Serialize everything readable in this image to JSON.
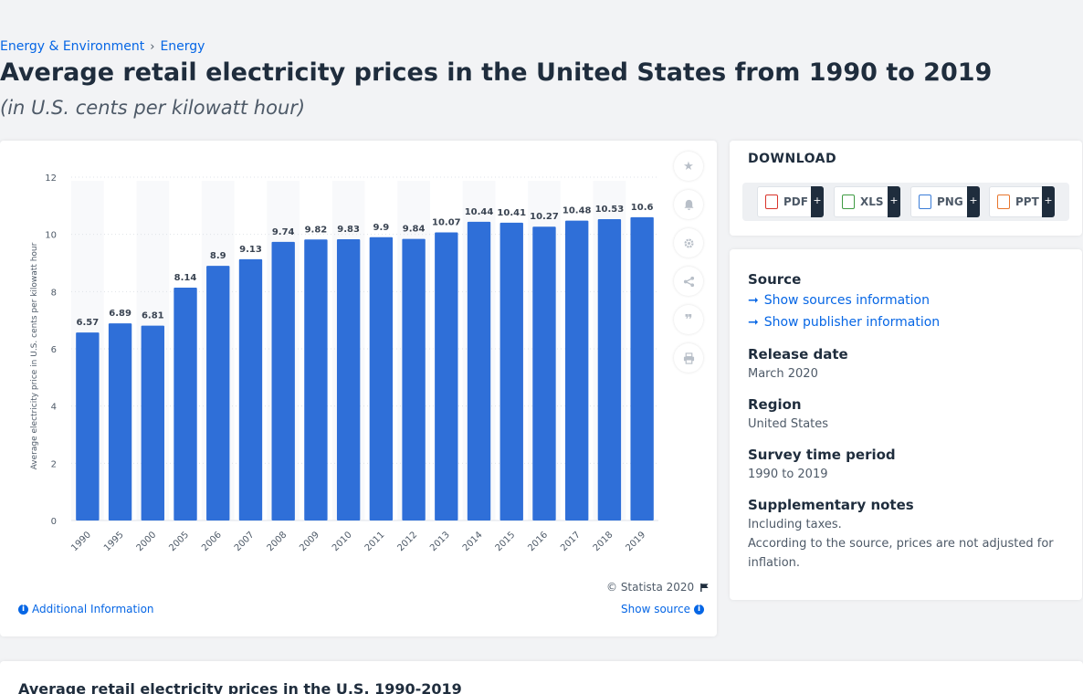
{
  "breadcrumb": [
    "Energy & Environment",
    "Energy"
  ],
  "title": "Average retail electricity prices in the United States from 1990 to 2019",
  "subtitle": "(in U.S. cents per kilowatt hour)",
  "colors": {
    "bar": "#2f6fd8",
    "accent": "#0666e5",
    "text": "#1f2d3d"
  },
  "chart_data": {
    "type": "bar",
    "categories": [
      "1990",
      "1995",
      "2000",
      "2005",
      "2006",
      "2007",
      "2008",
      "2009",
      "2010",
      "2011",
      "2012",
      "2013",
      "2014",
      "2015",
      "2016",
      "2017",
      "2018",
      "2019"
    ],
    "values": [
      6.57,
      6.89,
      6.81,
      8.14,
      8.9,
      9.13,
      9.74,
      9.82,
      9.83,
      9.9,
      9.84,
      10.07,
      10.44,
      10.41,
      10.27,
      10.48,
      10.53,
      10.6
    ],
    "ylabel": "Average electricity price in U.S. cents per kilowatt hour",
    "yticks": [
      0,
      2,
      4,
      6,
      8,
      10,
      12
    ],
    "ylim": [
      0,
      12
    ],
    "grid": true,
    "data_labels": true
  },
  "chart_footer": {
    "copyright": "© Statista 2020",
    "additional_info": "Additional Information",
    "show_source": "Show source"
  },
  "side_icons": [
    "star-icon",
    "bell-icon",
    "gear-icon",
    "share-icon",
    "quote-icon",
    "print-icon"
  ],
  "download": {
    "title": "DOWNLOAD",
    "buttons": [
      {
        "label": "PDF",
        "icon": "pdf-file-icon",
        "color": "#d9342b"
      },
      {
        "label": "XLS",
        "icon": "xls-file-icon",
        "color": "#3f9b43"
      },
      {
        "label": "PNG",
        "icon": "png-file-icon",
        "color": "#3b7dd8"
      },
      {
        "label": "PPT",
        "icon": "ppt-file-icon",
        "color": "#e8762d"
      }
    ],
    "plus": "+"
  },
  "info": {
    "source_heading": "Source",
    "show_sources": "Show sources information",
    "show_publisher": "Show publisher information",
    "release_heading": "Release date",
    "release_value": "March 2020",
    "region_heading": "Region",
    "region_value": "United States",
    "survey_heading": "Survey time period",
    "survey_value": "1990 to 2019",
    "notes_heading": "Supplementary notes",
    "notes_line1": "Including taxes.",
    "notes_line2": "According to the source, prices are not adjusted for inflation."
  },
  "bottom_title": "Average retail electricity prices in the U.S. 1990-2019"
}
